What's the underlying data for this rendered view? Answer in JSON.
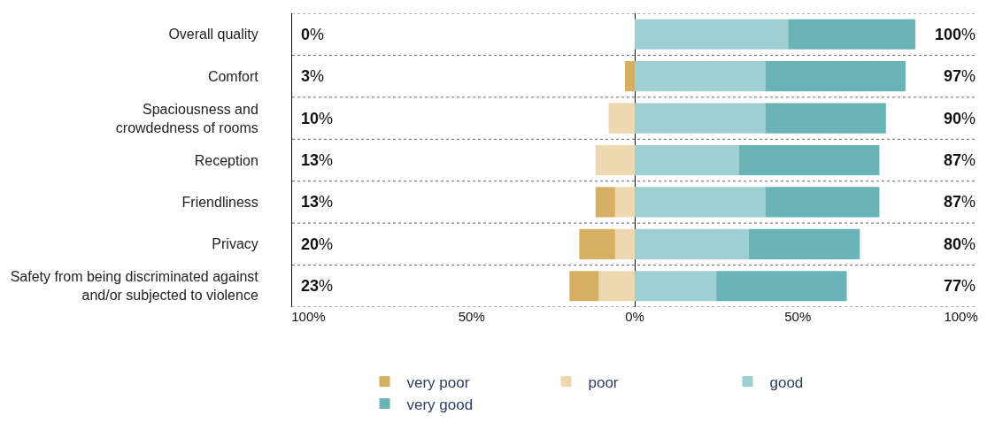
{
  "chart_data": {
    "type": "bar",
    "orientation": "horizontal",
    "stacked": true,
    "categories": [
      "Overall quality",
      "Comfort",
      "Spaciousness and\ncrowdedness of rooms",
      "Reception",
      "Friendliness",
      "Privacy",
      "Safety from being discriminated against\nand/or subjected to violence"
    ],
    "series": [
      {
        "name": "poor",
        "color": "#eed8b0",
        "values": [
          0,
          0,
          -8,
          -12,
          -6,
          -6,
          -11
        ]
      },
      {
        "name": "very poor",
        "color": "#d6b062",
        "values": [
          0,
          -3,
          0,
          0,
          -6,
          -11,
          -9
        ]
      },
      {
        "name": "good",
        "color": "#9ecfd2",
        "values": [
          47,
          40,
          40,
          32,
          40,
          35,
          25
        ]
      },
      {
        "name": "very good",
        "color": "#6ab4b8",
        "values": [
          39,
          43,
          37,
          43,
          35,
          34,
          40
        ]
      }
    ],
    "xlim": [
      -105,
      105
    ],
    "xticks": [
      {
        "value": -100,
        "label": "100%"
      },
      {
        "value": -50,
        "label": "50%"
      },
      {
        "value": 0,
        "label": "0%"
      },
      {
        "value": 50,
        "label": "50%"
      },
      {
        "value": 100,
        "label": "100%"
      }
    ],
    "annotations": [
      "0%",
      "100%",
      "3%",
      "97%",
      "10%",
      "90%",
      "13%",
      "87%",
      "13%",
      "87%",
      "20%",
      "80%",
      "23%",
      "77%"
    ],
    "grid": false,
    "legend": "bottom"
  }
}
